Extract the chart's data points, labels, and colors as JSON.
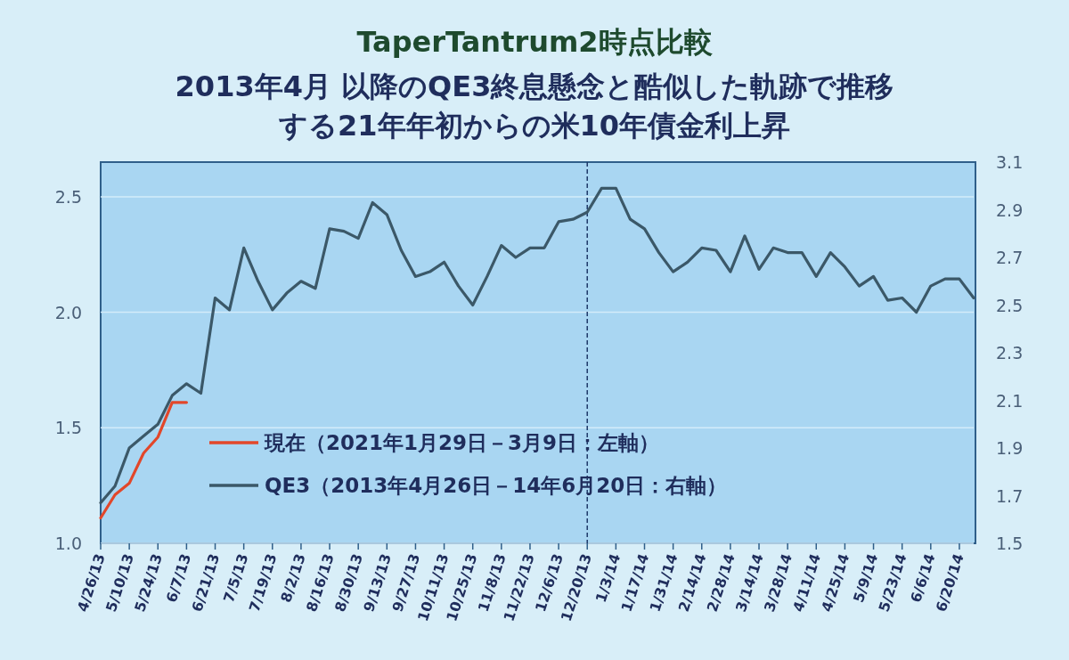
{
  "chart_data": {
    "type": "line",
    "title": "TaperTantrum2時点比較",
    "subtitle": "2013年4月 以降のQE3終息懸念と酷似した軌跡で推移する21年年初からの米10年債金利上昇",
    "categories": [
      "4/26/13",
      null,
      "5/10/13",
      null,
      "5/24/13",
      null,
      "6/7/13",
      null,
      "6/21/13",
      null,
      "7/5/13",
      null,
      "7/19/13",
      null,
      "8/2/13",
      null,
      "8/16/13",
      null,
      "8/30/13",
      null,
      "9/13/13",
      null,
      "9/27/13",
      null,
      "10/11/13",
      null,
      "10/25/13",
      null,
      "11/8/13",
      null,
      "11/22/13",
      null,
      "12/6/13",
      null,
      "12/20/13",
      null,
      "1/3/14",
      null,
      "1/17/14",
      null,
      "1/31/14",
      null,
      "2/14/14",
      null,
      "2/28/14",
      null,
      "3/14/14",
      null,
      "3/28/14",
      null,
      "4/11/14",
      null,
      "4/25/14",
      null,
      "5/9/14",
      null,
      "5/23/14",
      null,
      "6/6/14",
      null,
      "6/20/14",
      null
    ],
    "series": [
      {
        "name": "現在（2021年1月29日－3月9日：左軸）",
        "color": "#e2472a",
        "axis": "y",
        "values": [
          1.11,
          1.21,
          1.26,
          1.39,
          1.46,
          1.61,
          1.61,
          null,
          null,
          null,
          null,
          null,
          null,
          null,
          null,
          null,
          null,
          null,
          null,
          null,
          null,
          null,
          null,
          null,
          null,
          null,
          null,
          null,
          null,
          null,
          null,
          null,
          null,
          null,
          null,
          null,
          null,
          null,
          null,
          null,
          null,
          null,
          null,
          null,
          null,
          null,
          null,
          null,
          null,
          null,
          null,
          null,
          null,
          null,
          null,
          null,
          null,
          null,
          null,
          null,
          null,
          null
        ]
      },
      {
        "name": "QE3（2013年4月26日－14年6月20日：右軸）",
        "color": "#3b5868",
        "axis": "y2",
        "values": [
          1.67,
          1.74,
          1.9,
          1.95,
          2.0,
          2.12,
          2.17,
          2.13,
          2.53,
          2.48,
          2.74,
          2.6,
          2.48,
          2.55,
          2.6,
          2.57,
          2.82,
          2.81,
          2.78,
          2.93,
          2.88,
          2.73,
          2.62,
          2.64,
          2.68,
          2.58,
          2.5,
          2.62,
          2.75,
          2.7,
          2.74,
          2.74,
          2.85,
          2.86,
          2.89,
          2.99,
          2.99,
          2.86,
          2.82,
          2.72,
          2.64,
          2.68,
          2.74,
          2.73,
          2.64,
          2.79,
          2.65,
          2.74,
          2.72,
          2.72,
          2.62,
          2.72,
          2.66,
          2.58,
          2.62,
          2.52,
          2.53,
          2.47,
          2.58,
          2.61,
          2.61,
          2.53
        ]
      }
    ],
    "ylim": [
      1.0,
      2.65
    ],
    "yticks": [
      {
        "value": 1.0,
        "label": "1.0"
      },
      {
        "value": 1.5,
        "label": "1.5"
      },
      {
        "value": 2.0,
        "label": "2.0"
      },
      {
        "value": 2.5,
        "label": "2.5"
      }
    ],
    "y2lim": [
      1.5,
      3.1
    ],
    "y2ticks": [
      1.5,
      1.7,
      1.9,
      2.1,
      2.3,
      2.5,
      2.7,
      2.9,
      3.1
    ],
    "ref_lines": [
      {
        "axis": "x",
        "value": "12/20/13",
        "color": "#1f3a6a",
        "line_style": "dashed"
      }
    ],
    "grid": "y",
    "legend": "bottom left",
    "marker": "none",
    "line_style": "solid"
  }
}
